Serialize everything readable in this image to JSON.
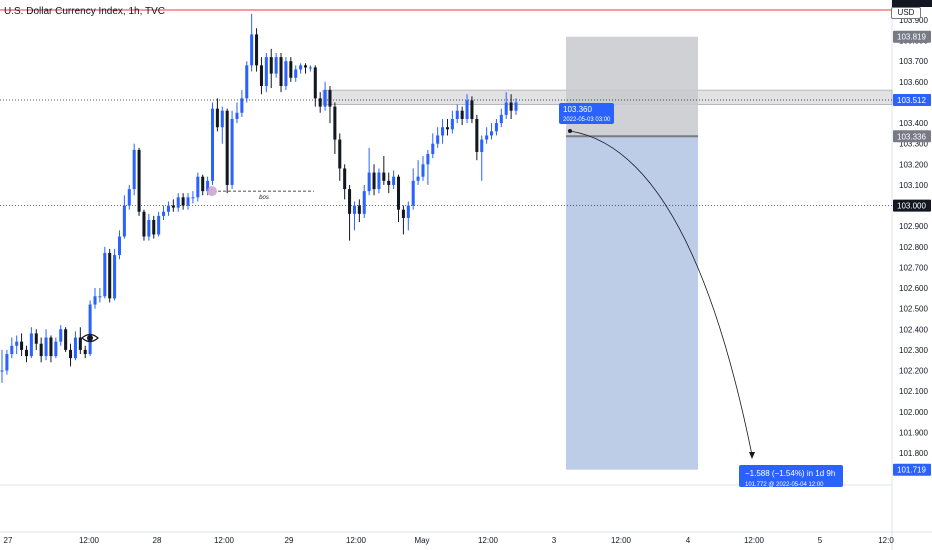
{
  "header": {
    "title": "U.S. Dollar Currency Index, 1h, TVC",
    "currency": "USD"
  },
  "colors": {
    "up": "#2962ff",
    "down": "#131722",
    "target_zone": "#b6c8e6",
    "stop_zone": "#c8c9cc",
    "tag_dark": "#131722",
    "tag_blue": "#2962ff",
    "tag_gray": "#787b86",
    "red_line": "#f23645"
  },
  "chart_data": {
    "type": "candlestick",
    "y_axis": {
      "ticks": [
        103.9,
        103.8,
        103.7,
        103.6,
        103.5,
        103.4,
        103.3,
        103.2,
        103.1,
        103.0,
        102.9,
        102.8,
        102.7,
        102.6,
        102.5,
        102.4,
        102.3,
        102.2,
        102.1,
        102.0,
        101.9,
        101.8
      ],
      "range": [
        101.62,
        103.96
      ]
    },
    "x_axis": {
      "ticks": [
        "27",
        "12:00",
        "28",
        "12:00",
        "29",
        "12:00",
        "May",
        "12:00",
        "3",
        "12:00",
        "4",
        "12:00",
        "5",
        "12:0"
      ]
    },
    "candles": [
      [
        102.2,
        102.2,
        102.14,
        102.3
      ],
      [
        102.2,
        102.28,
        102.18,
        102.3
      ],
      [
        102.28,
        102.32,
        102.26,
        102.36
      ],
      [
        102.32,
        102.34,
        102.28,
        102.37
      ],
      [
        102.34,
        102.3,
        102.27,
        102.38
      ],
      [
        102.3,
        102.27,
        102.24,
        102.32
      ],
      [
        102.27,
        102.38,
        102.26,
        102.41
      ],
      [
        102.38,
        102.33,
        102.3,
        102.4
      ],
      [
        102.33,
        102.27,
        102.24,
        102.36
      ],
      [
        102.27,
        102.36,
        102.25,
        102.4
      ],
      [
        102.36,
        102.27,
        102.24,
        102.37
      ],
      [
        102.27,
        102.34,
        102.26,
        102.36
      ],
      [
        102.34,
        102.4,
        102.32,
        102.42
      ],
      [
        102.4,
        102.3,
        102.29,
        102.41
      ],
      [
        102.3,
        102.26,
        102.22,
        102.33
      ],
      [
        102.26,
        102.36,
        102.25,
        102.39
      ],
      [
        102.36,
        102.3,
        102.28,
        102.41
      ],
      [
        102.3,
        102.28,
        102.26,
        102.32
      ],
      [
        102.28,
        102.52,
        102.27,
        102.54
      ],
      [
        102.52,
        102.56,
        102.5,
        102.6
      ],
      [
        102.56,
        102.56,
        102.53,
        102.6
      ],
      [
        102.56,
        102.77,
        102.55,
        102.8
      ],
      [
        102.77,
        102.55,
        102.53,
        102.79
      ],
      [
        102.55,
        102.76,
        102.54,
        102.79
      ],
      [
        102.76,
        102.85,
        102.74,
        102.88
      ],
      [
        102.85,
        103.0,
        102.84,
        103.05
      ],
      [
        103.0,
        103.08,
        102.98,
        103.1
      ],
      [
        103.08,
        103.27,
        103.05,
        103.3
      ],
      [
        103.27,
        102.97,
        102.95,
        103.28
      ],
      [
        102.97,
        102.85,
        102.83,
        102.98
      ],
      [
        102.85,
        102.93,
        102.83,
        102.96
      ],
      [
        102.93,
        102.86,
        102.84,
        102.95
      ],
      [
        102.86,
        102.95,
        102.85,
        102.97
      ],
      [
        102.95,
        102.97,
        102.93,
        103.0
      ],
      [
        102.97,
        103.0,
        102.95,
        103.02
      ],
      [
        103.0,
        102.99,
        102.97,
        103.03
      ],
      [
        102.99,
        103.04,
        102.97,
        103.06
      ],
      [
        103.04,
        103.0,
        102.98,
        103.06
      ],
      [
        103.0,
        103.04,
        102.98,
        103.06
      ],
      [
        103.04,
        103.04,
        103.01,
        103.07
      ],
      [
        103.04,
        103.14,
        103.02,
        103.16
      ],
      [
        103.14,
        103.07,
        103.05,
        103.15
      ],
      [
        103.07,
        103.12,
        103.05,
        103.14
      ],
      [
        103.12,
        103.47,
        103.1,
        103.5
      ],
      [
        103.47,
        103.38,
        103.36,
        103.52
      ],
      [
        103.38,
        103.46,
        103.3,
        103.48
      ],
      [
        103.46,
        103.1,
        103.06,
        103.47
      ],
      [
        103.1,
        103.42,
        103.08,
        103.46
      ],
      [
        103.42,
        103.45,
        103.4,
        103.5
      ],
      [
        103.45,
        103.52,
        103.43,
        103.56
      ],
      [
        103.52,
        103.68,
        103.5,
        103.7
      ],
      [
        103.68,
        103.83,
        103.65,
        103.93
      ],
      [
        103.83,
        103.68,
        103.65,
        103.86
      ],
      [
        103.68,
        103.58,
        103.54,
        103.72
      ],
      [
        103.58,
        103.72,
        103.55,
        103.74
      ],
      [
        103.72,
        103.64,
        103.57,
        103.76
      ],
      [
        103.64,
        103.72,
        103.62,
        103.74
      ],
      [
        103.72,
        103.58,
        103.55,
        103.74
      ],
      [
        103.58,
        103.7,
        103.56,
        103.72
      ],
      [
        103.7,
        103.62,
        103.6,
        103.72
      ],
      [
        103.62,
        103.66,
        103.6,
        103.68
      ],
      [
        103.66,
        103.68,
        103.64,
        103.69
      ],
      [
        103.68,
        103.67,
        103.64,
        103.69
      ],
      [
        103.67,
        103.67,
        103.65,
        103.68
      ],
      [
        103.67,
        103.52,
        103.48,
        103.68
      ],
      [
        103.52,
        103.48,
        103.45,
        103.55
      ],
      [
        103.48,
        103.56,
        103.46,
        103.6
      ],
      [
        103.56,
        103.48,
        103.4,
        103.58
      ],
      [
        103.48,
        103.32,
        103.25,
        103.5
      ],
      [
        103.32,
        103.18,
        103.12,
        103.35
      ],
      [
        103.18,
        103.08,
        103.03,
        103.2
      ],
      [
        103.08,
        102.96,
        102.83,
        103.1
      ],
      [
        102.96,
        103.0,
        102.88,
        103.02
      ],
      [
        103.0,
        102.96,
        102.92,
        103.03
      ],
      [
        102.96,
        103.07,
        102.94,
        103.1
      ],
      [
        103.07,
        103.16,
        103.05,
        103.28
      ],
      [
        103.16,
        103.08,
        103.05,
        103.2
      ],
      [
        103.08,
        103.16,
        103.06,
        103.18
      ],
      [
        103.16,
        103.12,
        103.1,
        103.24
      ],
      [
        103.12,
        103.1,
        103.06,
        103.16
      ],
      [
        103.1,
        103.14,
        103.08,
        103.17
      ],
      [
        103.14,
        102.98,
        102.92,
        103.15
      ],
      [
        102.98,
        102.94,
        102.86,
        103.0
      ],
      [
        102.94,
        103.0,
        102.88,
        103.02
      ],
      [
        103.0,
        103.12,
        102.98,
        103.18
      ],
      [
        103.12,
        103.14,
        103.1,
        103.22
      ],
      [
        103.14,
        103.2,
        103.12,
        103.24
      ],
      [
        103.2,
        103.25,
        103.1,
        103.27
      ],
      [
        103.25,
        103.3,
        103.23,
        103.35
      ],
      [
        103.3,
        103.34,
        103.28,
        103.38
      ],
      [
        103.34,
        103.38,
        103.3,
        103.42
      ],
      [
        103.38,
        103.37,
        103.34,
        103.42
      ],
      [
        103.37,
        103.42,
        103.35,
        103.46
      ],
      [
        103.42,
        103.46,
        103.4,
        103.49
      ],
      [
        103.46,
        103.42,
        103.39,
        103.48
      ],
      [
        103.42,
        103.51,
        103.4,
        103.54
      ],
      [
        103.51,
        103.42,
        103.4,
        103.53
      ],
      [
        103.42,
        103.26,
        103.22,
        103.44
      ],
      [
        103.26,
        103.32,
        103.12,
        103.34
      ],
      [
        103.32,
        103.34,
        103.3,
        103.38
      ],
      [
        103.34,
        103.36,
        103.32,
        103.4
      ],
      [
        103.36,
        103.4,
        103.34,
        103.42
      ],
      [
        103.4,
        103.44,
        103.38,
        103.47
      ],
      [
        103.44,
        103.5,
        103.42,
        103.55
      ],
      [
        103.5,
        103.46,
        103.42,
        103.54
      ],
      [
        103.46,
        103.5,
        103.44,
        103.52
      ]
    ],
    "annotations": {
      "bos_label": "bos",
      "bos_level": 103.07,
      "entry_label": "103.360",
      "entry_time": "2022-05-03 03:00",
      "projection_label": "−1.588 (−1.54%) in 1d 9h",
      "projection_sub": "101.772 @ 2022-05-04 12:00",
      "resistance_zone": [
        103.49,
        103.56
      ],
      "horizontal_level": 103.0,
      "stop_level": 103.819,
      "entry_level": 103.336,
      "target_level": 101.719
    },
    "price_tags": [
      {
        "label": "103.819",
        "value": 103.819,
        "style": "gray"
      },
      {
        "label": "103.512",
        "value": 103.512,
        "style": "blue"
      },
      {
        "label": "103.336",
        "value": 103.336,
        "style": "gray"
      },
      {
        "label": "103.000",
        "value": 103.0,
        "style": "dark"
      },
      {
        "label": "101.719",
        "value": 101.719,
        "style": "blue"
      }
    ]
  }
}
